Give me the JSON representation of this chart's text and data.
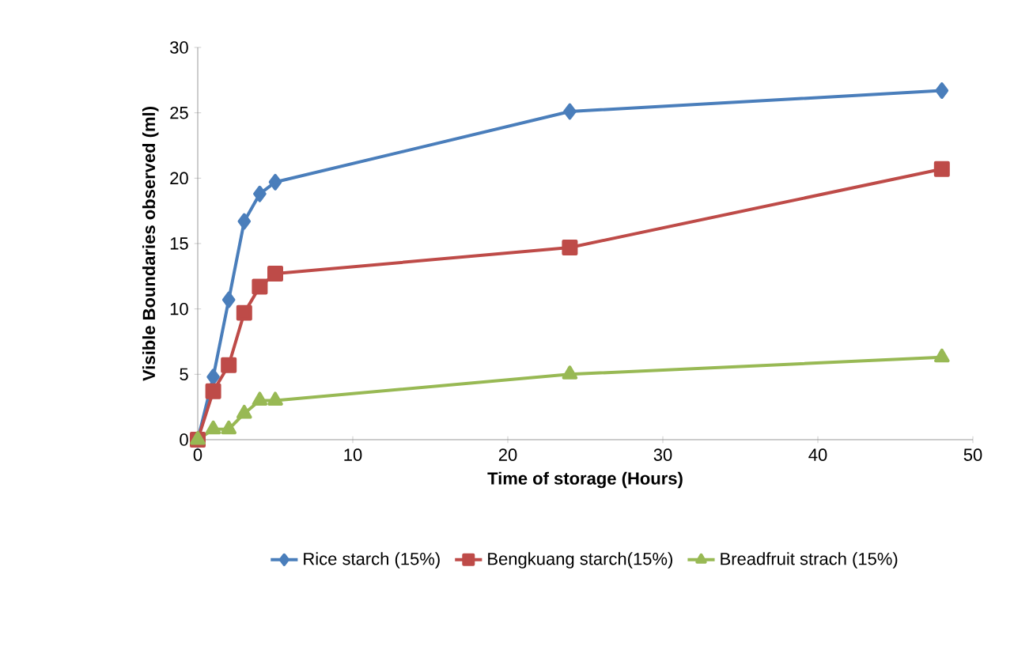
{
  "chart_data": {
    "type": "line",
    "xlabel": "Time of storage (Hours)",
    "ylabel": "Visible Boundaries observed (ml)",
    "x": [
      0,
      1,
      2,
      3,
      4,
      5,
      24,
      48
    ],
    "series": [
      {
        "name": "Rice starch (15%)",
        "color": "#4a7ebb",
        "marker": "diamond",
        "values": [
          0,
          4.8,
          10.7,
          16.7,
          18.8,
          19.7,
          25.1,
          26.7
        ]
      },
      {
        "name": "Bengkuang starch(15%)",
        "color": "#be4b48",
        "marker": "square",
        "values": [
          0,
          3.7,
          5.7,
          9.7,
          11.7,
          12.7,
          14.7,
          20.7
        ]
      },
      {
        "name": "Breadfruit strach (15%)",
        "color": "#98b954",
        "marker": "triangle",
        "values": [
          0,
          0.8,
          0.8,
          2,
          3,
          3,
          5,
          6.3
        ]
      }
    ],
    "xlim": [
      0,
      50
    ],
    "xticks": [
      0,
      10,
      20,
      30,
      40,
      50
    ],
    "ylim": [
      0,
      30
    ],
    "yticks": [
      0,
      5,
      10,
      15,
      20,
      25,
      30
    ],
    "grid": false,
    "legend": "bottom",
    "line_style": "solid"
  }
}
